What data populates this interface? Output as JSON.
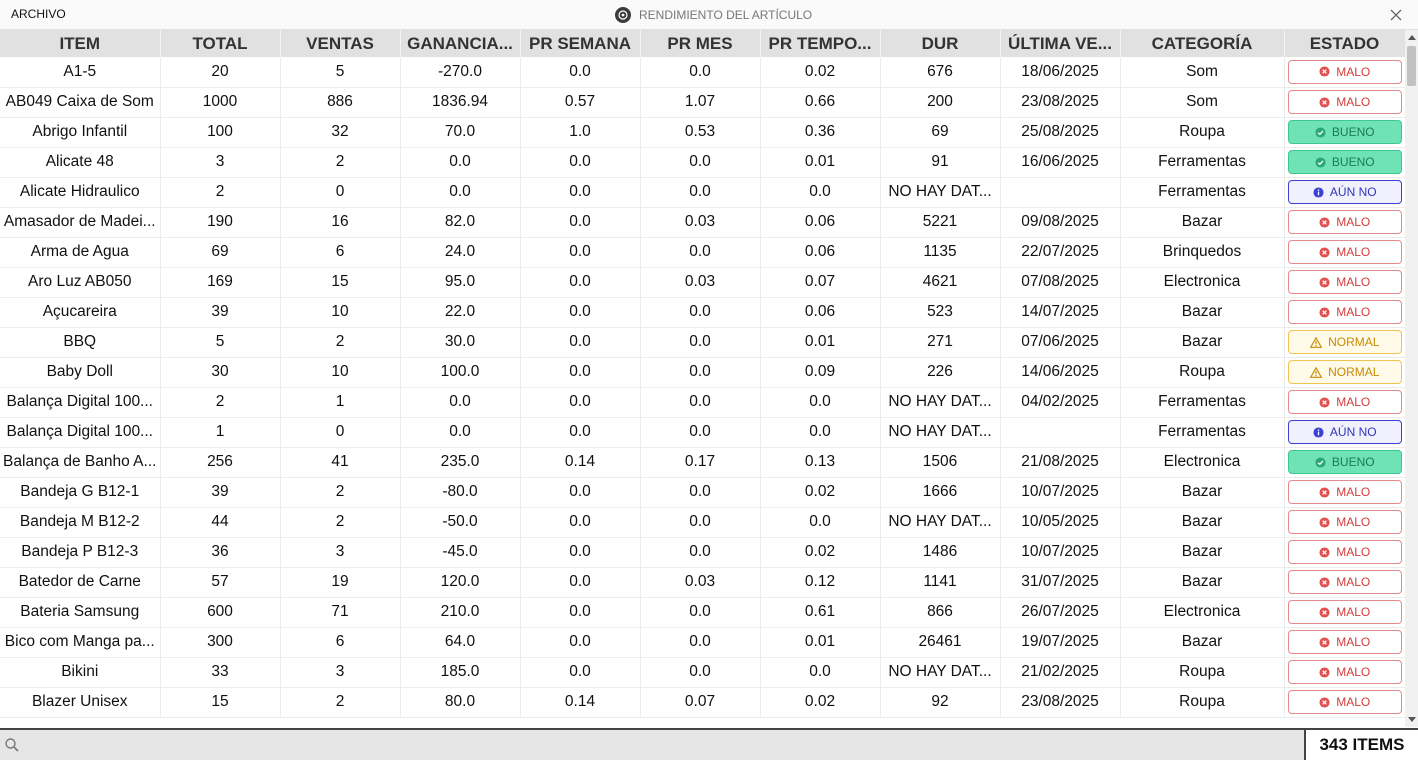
{
  "window": {
    "menu_label": "ARCHIVO",
    "title": "RENDIMIENTO DEL ARTÍCULO"
  },
  "table": {
    "columns": [
      "ITEM",
      "TOTAL",
      "VENTAS",
      "GANANCIA...",
      "PR SEMANA",
      "PR MES",
      "PR TEMPO...",
      "DUR",
      "ÚLTIMA VE...",
      "CATEGORÍA",
      "ESTADO"
    ],
    "rows": [
      {
        "item": "A1-5",
        "total": "20",
        "ventas": "5",
        "ganancia": "-270.0",
        "pr_semana": "0.0",
        "pr_mes": "0.0",
        "pr_tempo": "0.02",
        "dur": "676",
        "ultima": "18/06/2025",
        "categoria": "Som",
        "estado": "MALO",
        "estado_type": "malo"
      },
      {
        "item": "AB049 Caixa de Som",
        "total": "1000",
        "ventas": "886",
        "ganancia": "1836.94",
        "pr_semana": "0.57",
        "pr_mes": "1.07",
        "pr_tempo": "0.66",
        "dur": "200",
        "ultima": "23/08/2025",
        "categoria": "Som",
        "estado": "MALO",
        "estado_type": "malo"
      },
      {
        "item": "Abrigo Infantil",
        "total": "100",
        "ventas": "32",
        "ganancia": "70.0",
        "pr_semana": "1.0",
        "pr_mes": "0.53",
        "pr_tempo": "0.36",
        "dur": "69",
        "ultima": "25/08/2025",
        "categoria": "Roupa",
        "estado": "BUENO",
        "estado_type": "bueno"
      },
      {
        "item": "Alicate 48",
        "total": "3",
        "ventas": "2",
        "ganancia": "0.0",
        "pr_semana": "0.0",
        "pr_mes": "0.0",
        "pr_tempo": "0.01",
        "dur": "91",
        "ultima": "16/06/2025",
        "categoria": "Ferramentas",
        "estado": "BUENO",
        "estado_type": "bueno"
      },
      {
        "item": "Alicate Hidraulico",
        "total": "2",
        "ventas": "0",
        "ganancia": "0.0",
        "pr_semana": "0.0",
        "pr_mes": "0.0",
        "pr_tempo": "0.0",
        "dur": "NO HAY DAT...",
        "ultima": "",
        "categoria": "Ferramentas",
        "estado": "AÚN NO",
        "estado_type": "aunno"
      },
      {
        "item": "Amasador de Madei...",
        "total": "190",
        "ventas": "16",
        "ganancia": "82.0",
        "pr_semana": "0.0",
        "pr_mes": "0.03",
        "pr_tempo": "0.06",
        "dur": "5221",
        "ultima": "09/08/2025",
        "categoria": "Bazar",
        "estado": "MALO",
        "estado_type": "malo"
      },
      {
        "item": "Arma de Agua",
        "total": "69",
        "ventas": "6",
        "ganancia": "24.0",
        "pr_semana": "0.0",
        "pr_mes": "0.0",
        "pr_tempo": "0.06",
        "dur": "1135",
        "ultima": "22/07/2025",
        "categoria": "Brinquedos",
        "estado": "MALO",
        "estado_type": "malo"
      },
      {
        "item": "Aro Luz AB050",
        "total": "169",
        "ventas": "15",
        "ganancia": "95.0",
        "pr_semana": "0.0",
        "pr_mes": "0.03",
        "pr_tempo": "0.07",
        "dur": "4621",
        "ultima": "07/08/2025",
        "categoria": "Electronica",
        "estado": "MALO",
        "estado_type": "malo"
      },
      {
        "item": "Açucareira",
        "total": "39",
        "ventas": "10",
        "ganancia": "22.0",
        "pr_semana": "0.0",
        "pr_mes": "0.0",
        "pr_tempo": "0.06",
        "dur": "523",
        "ultima": "14/07/2025",
        "categoria": "Bazar",
        "estado": "MALO",
        "estado_type": "malo"
      },
      {
        "item": "BBQ",
        "total": "5",
        "ventas": "2",
        "ganancia": "30.0",
        "pr_semana": "0.0",
        "pr_mes": "0.0",
        "pr_tempo": "0.01",
        "dur": "271",
        "ultima": "07/06/2025",
        "categoria": "Bazar",
        "estado": "NORMAL",
        "estado_type": "normal"
      },
      {
        "item": "Baby Doll",
        "total": "30",
        "ventas": "10",
        "ganancia": "100.0",
        "pr_semana": "0.0",
        "pr_mes": "0.0",
        "pr_tempo": "0.09",
        "dur": "226",
        "ultima": "14/06/2025",
        "categoria": "Roupa",
        "estado": "NORMAL",
        "estado_type": "normal"
      },
      {
        "item": "Balança Digital 100...",
        "total": "2",
        "ventas": "1",
        "ganancia": "0.0",
        "pr_semana": "0.0",
        "pr_mes": "0.0",
        "pr_tempo": "0.0",
        "dur": "NO HAY DAT...",
        "ultima": "04/02/2025",
        "categoria": "Ferramentas",
        "estado": "MALO",
        "estado_type": "malo"
      },
      {
        "item": "Balança Digital 100...",
        "total": "1",
        "ventas": "0",
        "ganancia": "0.0",
        "pr_semana": "0.0",
        "pr_mes": "0.0",
        "pr_tempo": "0.0",
        "dur": "NO HAY DAT...",
        "ultima": "",
        "categoria": "Ferramentas",
        "estado": "AÚN NO",
        "estado_type": "aunno"
      },
      {
        "item": "Balança de Banho A...",
        "total": "256",
        "ventas": "41",
        "ganancia": "235.0",
        "pr_semana": "0.14",
        "pr_mes": "0.17",
        "pr_tempo": "0.13",
        "dur": "1506",
        "ultima": "21/08/2025",
        "categoria": "Electronica",
        "estado": "BUENO",
        "estado_type": "bueno"
      },
      {
        "item": "Bandeja G B12-1",
        "total": "39",
        "ventas": "2",
        "ganancia": "-80.0",
        "pr_semana": "0.0",
        "pr_mes": "0.0",
        "pr_tempo": "0.02",
        "dur": "1666",
        "ultima": "10/07/2025",
        "categoria": "Bazar",
        "estado": "MALO",
        "estado_type": "malo"
      },
      {
        "item": "Bandeja M B12-2",
        "total": "44",
        "ventas": "2",
        "ganancia": "-50.0",
        "pr_semana": "0.0",
        "pr_mes": "0.0",
        "pr_tempo": "0.0",
        "dur": "NO HAY DAT...",
        "ultima": "10/05/2025",
        "categoria": "Bazar",
        "estado": "MALO",
        "estado_type": "malo"
      },
      {
        "item": "Bandeja P B12-3",
        "total": "36",
        "ventas": "3",
        "ganancia": "-45.0",
        "pr_semana": "0.0",
        "pr_mes": "0.0",
        "pr_tempo": "0.02",
        "dur": "1486",
        "ultima": "10/07/2025",
        "categoria": "Bazar",
        "estado": "MALO",
        "estado_type": "malo"
      },
      {
        "item": "Batedor de Carne",
        "total": "57",
        "ventas": "19",
        "ganancia": "120.0",
        "pr_semana": "0.0",
        "pr_mes": "0.03",
        "pr_tempo": "0.12",
        "dur": "1141",
        "ultima": "31/07/2025",
        "categoria": "Bazar",
        "estado": "MALO",
        "estado_type": "malo"
      },
      {
        "item": "Bateria Samsung",
        "total": "600",
        "ventas": "71",
        "ganancia": "210.0",
        "pr_semana": "0.0",
        "pr_mes": "0.0",
        "pr_tempo": "0.61",
        "dur": "866",
        "ultima": "26/07/2025",
        "categoria": "Electronica",
        "estado": "MALO",
        "estado_type": "malo"
      },
      {
        "item": "Bico com Manga pa...",
        "total": "300",
        "ventas": "6",
        "ganancia": "64.0",
        "pr_semana": "0.0",
        "pr_mes": "0.0",
        "pr_tempo": "0.01",
        "dur": "26461",
        "ultima": "19/07/2025",
        "categoria": "Bazar",
        "estado": "MALO",
        "estado_type": "malo"
      },
      {
        "item": "Bikini",
        "total": "33",
        "ventas": "3",
        "ganancia": "185.0",
        "pr_semana": "0.0",
        "pr_mes": "0.0",
        "pr_tempo": "0.0",
        "dur": "NO HAY DAT...",
        "ultima": "21/02/2025",
        "categoria": "Roupa",
        "estado": "MALO",
        "estado_type": "malo"
      },
      {
        "item": "Blazer Unisex",
        "total": "15",
        "ventas": "2",
        "ganancia": "80.0",
        "pr_semana": "0.14",
        "pr_mes": "0.07",
        "pr_tempo": "0.02",
        "dur": "92",
        "ultima": "23/08/2025",
        "categoria": "Roupa",
        "estado": "MALO",
        "estado_type": "malo"
      }
    ]
  },
  "status_colors": {
    "malo": "#d23b3b",
    "bueno": "#3cc98f",
    "normal": "#f0c24f",
    "aunno": "#3b43d6"
  },
  "footer": {
    "search_placeholder": "",
    "search_value": "",
    "items_count": "343 ITEMS"
  }
}
